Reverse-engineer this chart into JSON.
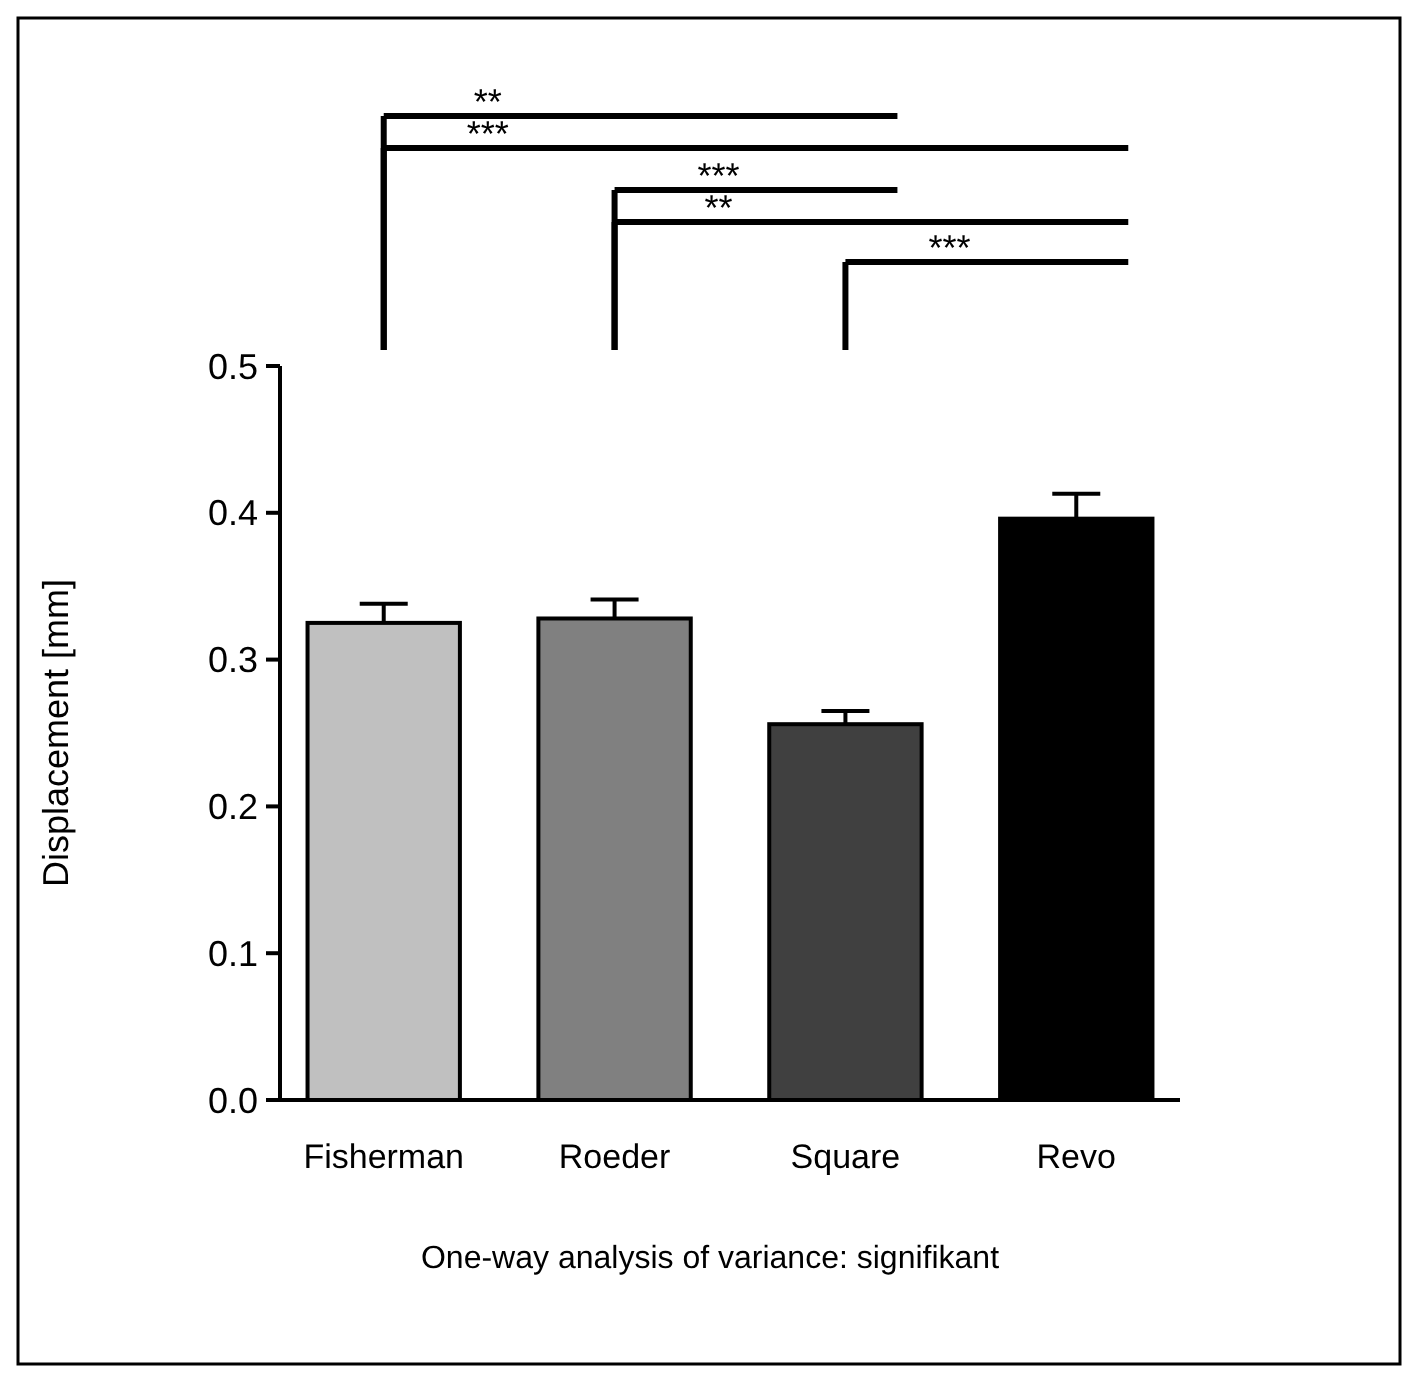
{
  "chart_data": {
    "type": "bar",
    "ylabel": "Displacement [mm]",
    "categories": [
      "Fisherman",
      "Roeder",
      "Square",
      "Revo"
    ],
    "values": [
      0.325,
      0.328,
      0.256,
      0.396
    ],
    "errors": [
      0.013,
      0.013,
      0.009,
      0.017
    ],
    "colors": [
      "#c0c0c0",
      "#808080",
      "#404040",
      "#000000"
    ],
    "ylim": [
      0,
      0.5
    ],
    "yticks": [
      {
        "value": 0,
        "label": "0.0"
      },
      0.1,
      0.2,
      0.3,
      0.4,
      0.5
    ],
    "grid": false,
    "annotations": [
      "**",
      "***",
      "***",
      "**",
      "***",
      "One-way analysis of variance: signifikant"
    ]
  }
}
